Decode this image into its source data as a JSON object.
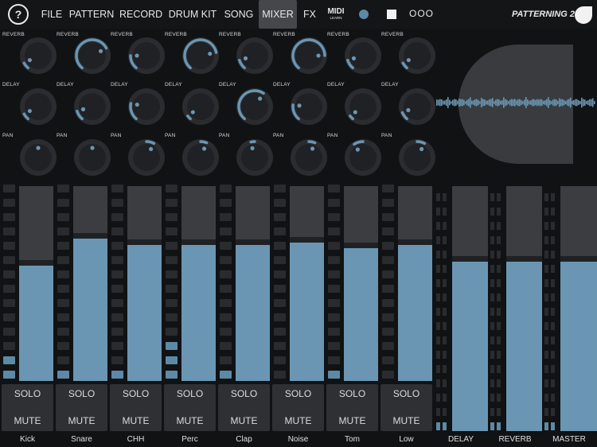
{
  "toolbar": {
    "help": "?",
    "menu": [
      "FILE",
      "PATTERN",
      "RECORD",
      "DRUM KIT",
      "SONG",
      "MIXER",
      "FX"
    ],
    "active": "MIXER",
    "midi_big": "MIDI",
    "midi_small": "LEARN",
    "more": "OOO",
    "brand": "PATTERNING 2"
  },
  "knob_rows": [
    {
      "label": "REVERB",
      "values": [
        0.08,
        0.72,
        0.18,
        0.78,
        0.12,
        0.82,
        0.12,
        0.08
      ]
    },
    {
      "label": "DELAY",
      "values": [
        0.08,
        0.12,
        0.22,
        0.05,
        0.62,
        0.2,
        0.05,
        0.1
      ]
    },
    {
      "label": "PAN",
      "values": [
        0.5,
        0.5,
        0.6,
        0.58,
        0.45,
        0.58,
        0.38,
        0.6
      ]
    }
  ],
  "channels": [
    {
      "name": "Kick",
      "level": 0.59,
      "meter": 2
    },
    {
      "name": "Snare",
      "level": 0.73,
      "meter": 1
    },
    {
      "name": "CHH",
      "level": 0.7,
      "meter": 1
    },
    {
      "name": "Perc",
      "level": 0.7,
      "meter": 3
    },
    {
      "name": "Clap",
      "level": 0.7,
      "meter": 1
    },
    {
      "name": "Noise",
      "level": 0.71,
      "meter": 0
    },
    {
      "name": "Tom",
      "level": 0.68,
      "meter": 1
    },
    {
      "name": "Low",
      "level": 0.7,
      "meter": 0
    }
  ],
  "solo_label": "SOLO",
  "mute_label": "MUTE",
  "buses": [
    {
      "name": "DELAY",
      "level": 0.69
    },
    {
      "name": "REVERB",
      "level": 0.69
    },
    {
      "name": "MASTER",
      "level": 0.69
    }
  ],
  "colors": {
    "accent": "#6a96b3",
    "meter": "#5c8aa6",
    "background": "#111214"
  }
}
